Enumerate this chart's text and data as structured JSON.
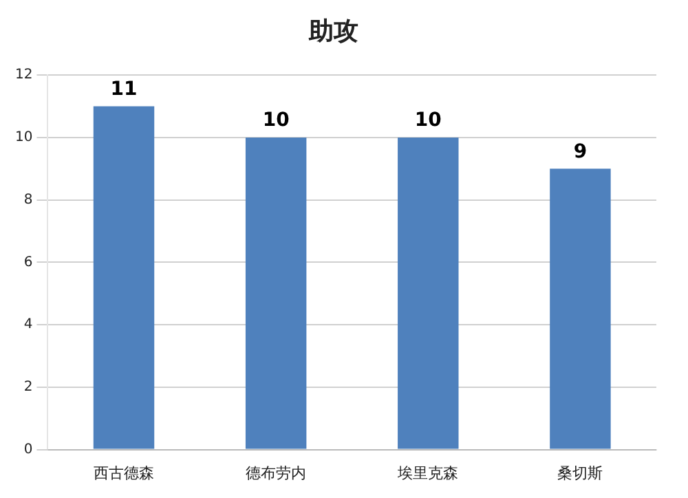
{
  "chart_data": {
    "type": "bar",
    "title": "助攻",
    "categories": [
      "西古德森",
      "德布劳内",
      "埃里克森",
      "桑切斯"
    ],
    "values": [
      11,
      10,
      10,
      9
    ],
    "color": "#4f81bd",
    "ylim": [
      0,
      12
    ],
    "yticks": [
      0,
      2,
      4,
      6,
      8,
      10,
      12
    ],
    "grid": "y",
    "data_labels": true,
    "legend": false
  }
}
